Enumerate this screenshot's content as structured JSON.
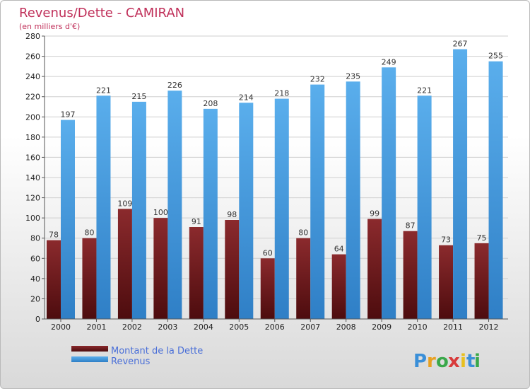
{
  "chart_data": {
    "type": "bar",
    "title": "Revenus/Dette - CAMIRAN",
    "subtitle": "(en milliers d'€)",
    "categories": [
      "2000",
      "2001",
      "2002",
      "2003",
      "2004",
      "2005",
      "2006",
      "2007",
      "2008",
      "2009",
      "2010",
      "2011",
      "2012"
    ],
    "series": [
      {
        "name": "Montant de la Dette",
        "color": "#7a1f22",
        "values": [
          78,
          80,
          109,
          100,
          91,
          98,
          60,
          80,
          64,
          99,
          87,
          73,
          75
        ]
      },
      {
        "name": "Revenus",
        "color": "#4fa3e6",
        "values": [
          197,
          221,
          215,
          226,
          208,
          214,
          218,
          232,
          235,
          249,
          221,
          267,
          255
        ]
      }
    ],
    "ylim": [
      0,
      280
    ],
    "yticks": [
      0,
      20,
      40,
      60,
      80,
      100,
      120,
      140,
      160,
      180,
      200,
      220,
      240,
      260,
      280
    ],
    "grid": true,
    "legend": "bottom-left"
  },
  "logo": {
    "text": "Proxiti",
    "letters": [
      "P",
      "r",
      "o",
      "x",
      "i",
      "t",
      "i"
    ],
    "colors": [
      "#3a8fd8",
      "#e8a020",
      "#3aa84a",
      "#d83a3a",
      "#e8c020",
      "#3a8fd8",
      "#3aa84a"
    ]
  }
}
